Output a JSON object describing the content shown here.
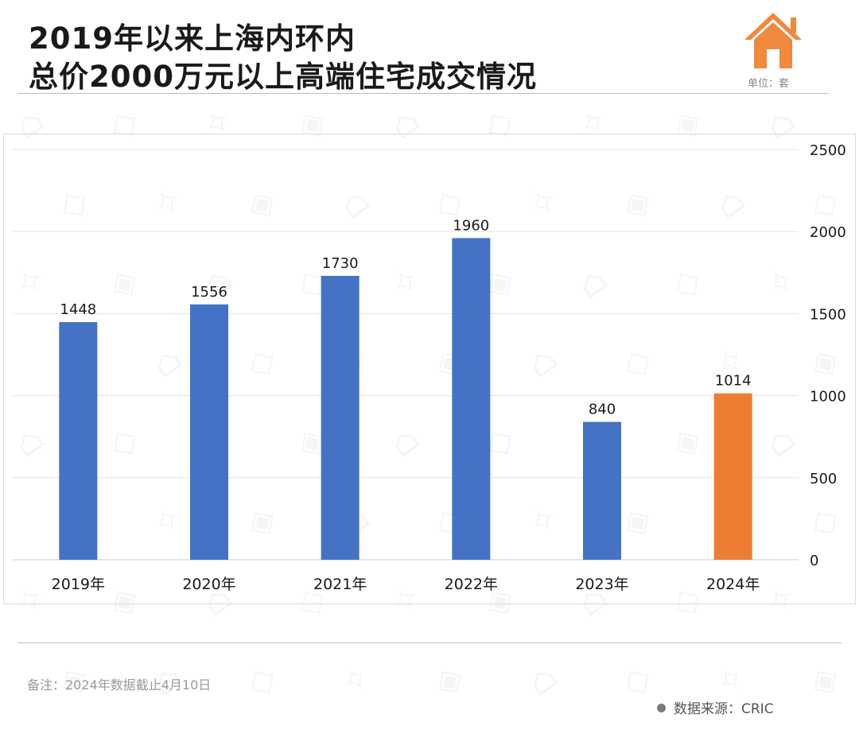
{
  "header": {
    "title_line1": "2019年以来上海内环内",
    "title_line2": "总价2000万元以上高端住宅成交情况",
    "unit": "单位：套"
  },
  "logo": {
    "icon": "house-icon",
    "color": "#F0883E"
  },
  "chart_data": {
    "type": "bar",
    "categories": [
      "2019年",
      "2020年",
      "2021年",
      "2022年",
      "2023年",
      "2024年"
    ],
    "values": [
      1448,
      1556,
      1730,
      1960,
      840,
      1014
    ],
    "colors": [
      "#4472C4",
      "#4472C4",
      "#4472C4",
      "#4472C4",
      "#4472C4",
      "#ED7D31"
    ],
    "y_ticks": [
      0,
      500,
      1000,
      1500,
      2000,
      2500
    ],
    "ylim": [
      0,
      2500
    ],
    "y_axis_position": "right",
    "grid": true,
    "data_labels": true,
    "title": "2019年以来上海内环内总价2000万元以上高端住宅成交情况",
    "xlabel": "",
    "ylabel": "单位：套"
  },
  "footer": {
    "note": "备注：2024年数据截止4月10日",
    "source": "数据来源：CRIC"
  }
}
